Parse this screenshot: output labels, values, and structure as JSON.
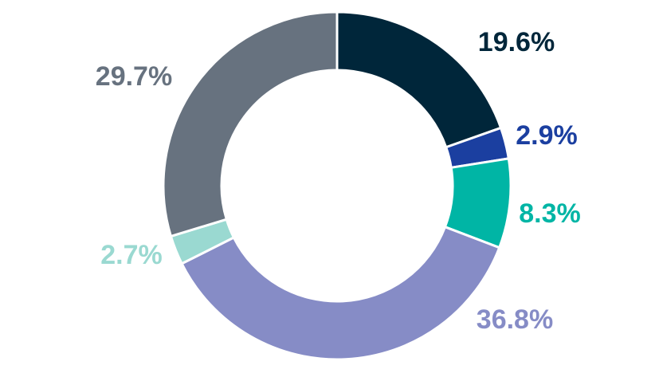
{
  "chart_data": {
    "type": "pie",
    "donut": true,
    "title": "",
    "legend": "none",
    "slices": [
      {
        "value": 19.6,
        "label": "19.6%",
        "color": "#00263A"
      },
      {
        "value": 2.9,
        "label": "2.9%",
        "color": "#1B3FA0"
      },
      {
        "value": 8.3,
        "label": "8.3%",
        "color": "#00B5A5"
      },
      {
        "value": 36.8,
        "label": "36.8%",
        "color": "#868CC6"
      },
      {
        "value": 2.7,
        "label": "2.7%",
        "color": "#9AD9D1"
      },
      {
        "value": 29.7,
        "label": "29.7%",
        "color": "#67727F"
      }
    ]
  }
}
